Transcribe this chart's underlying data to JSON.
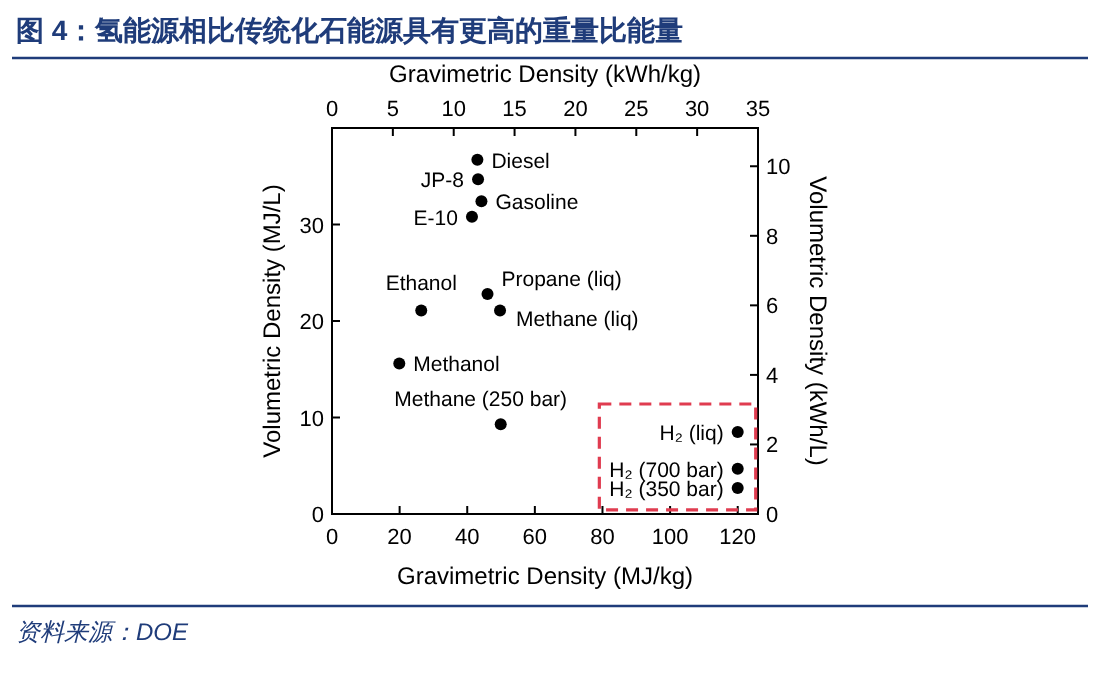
{
  "chart_data": {
    "type": "scatter",
    "title": "图 4：氢能源相比传统化石能源具有更高的重量比能量",
    "xlabel": "Gravimetric Density (MJ/kg)",
    "x2label": "Gravimetric Density (kWh/kg)",
    "ylabel": "Volumetric Density (MJ/L)",
    "y2label": "Volumetric Density (kWh/L)",
    "xlim": [
      0,
      126
    ],
    "xticks": [
      0,
      20,
      40,
      60,
      80,
      100,
      120
    ],
    "x2lim": [
      0,
      35
    ],
    "x2ticks": [
      0,
      5,
      10,
      15,
      20,
      25,
      30,
      35
    ],
    "ylim": [
      0,
      40
    ],
    "yticks": [
      0,
      10,
      20,
      30
    ],
    "y2lim": [
      0,
      11.1
    ],
    "y2ticks": [
      0,
      2,
      4,
      6,
      8,
      10
    ],
    "marker": "circle",
    "series": [
      {
        "color": "#000000",
        "x": [
          43,
          43.2,
          44.2,
          41.4,
          26.4,
          46,
          49.7,
          19.9,
          49.9,
          120,
          120,
          120
        ],
        "values": [
          36.7,
          34.7,
          32.4,
          30.8,
          21.1,
          22.8,
          21.1,
          15.6,
          9.3,
          8.5,
          4.7,
          2.7
        ]
      }
    ],
    "annotations": [
      {
        "text": "Diesel",
        "x": 43,
        "y": 36.7
      },
      {
        "text": "JP-8",
        "x": 43.2,
        "y": 34.7
      },
      {
        "text": "Gasoline",
        "x": 44.2,
        "y": 32.4
      },
      {
        "text": "E-10",
        "x": 41.4,
        "y": 30.8
      },
      {
        "text": "Ethanol",
        "x": 26.4,
        "y": 21.1
      },
      {
        "text": "Propane (liq)",
        "x": 46,
        "y": 22.8
      },
      {
        "text": "Methane (liq)",
        "x": 49.7,
        "y": 21.1
      },
      {
        "text": "Methanol",
        "x": 19.9,
        "y": 15.6
      },
      {
        "text": "Methane (250 bar)",
        "x": 49.9,
        "y": 9.3
      },
      {
        "text": "H₂ (liq)",
        "x": 120,
        "y": 8.5
      },
      {
        "text": "H₂ (700 bar)",
        "x": 120,
        "y": 4.7
      },
      {
        "text": "H₂ (350 bar)",
        "x": 120,
        "y": 2.7
      },
      "资料来源：DOE"
    ]
  }
}
